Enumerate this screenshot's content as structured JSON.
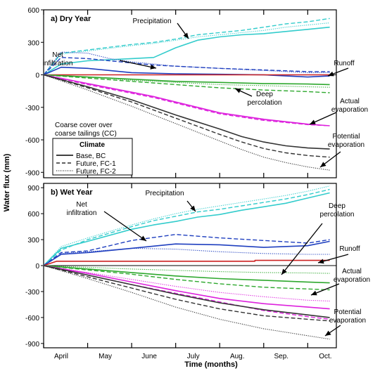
{
  "y_axis_label": "Water flux (mm)",
  "x_axis_label": "Time (months)",
  "months": [
    "April",
    "May",
    "June",
    "July",
    "Aug.",
    "Sep.",
    "Oct."
  ],
  "legend": {
    "cover_note": [
      "Coarse cover over",
      "coarse tailings (CC)"
    ],
    "title": "Climate",
    "entries": [
      "Base, BC",
      "Future, FC-1",
      "Future, FC-2"
    ]
  },
  "colors": {
    "precipitation": "#33cccc",
    "net_infiltration": "#1f3fbf",
    "runoff": "#cc2222",
    "deep_percolation": "#2ea82e",
    "actual_evaporation": "#dd22dd",
    "potential_evaporation": "#333333"
  },
  "chart_data": [
    {
      "type": "line",
      "title": "a) Dry Year",
      "xlim": [
        0,
        6.65
      ],
      "ylim": [
        -950,
        600
      ],
      "yticks": [
        -900,
        -600,
        -300,
        0,
        300,
        600
      ],
      "annotations": [
        "Precipitation",
        "Net infiltration",
        "Runoff",
        "Deep percolation",
        "Actual evaporation",
        "Potential evaporation"
      ],
      "series": [
        {
          "var": "precipitation",
          "scenario": "BC",
          "x": [
            0,
            0.4,
            1,
            2,
            2.5,
            3,
            3.5,
            4,
            4.5,
            5,
            5.5,
            6,
            6.5
          ],
          "y": [
            0,
            100,
            130,
            150,
            160,
            250,
            320,
            350,
            370,
            380,
            400,
            420,
            440
          ]
        },
        {
          "var": "precipitation",
          "scenario": "FC-1",
          "x": [
            0,
            0.4,
            1,
            2,
            2.5,
            3,
            3.5,
            4,
            4.5,
            5,
            5.5,
            6,
            6.5
          ],
          "y": [
            0,
            200,
            230,
            280,
            300,
            330,
            370,
            390,
            410,
            440,
            470,
            490,
            520
          ]
        },
        {
          "var": "precipitation",
          "scenario": "FC-2",
          "x": [
            0,
            0.4,
            1,
            2,
            2.5,
            3,
            3.5,
            4,
            4.5,
            5,
            5.5,
            6,
            6.5
          ],
          "y": [
            0,
            190,
            220,
            270,
            290,
            320,
            350,
            370,
            390,
            410,
            440,
            460,
            480
          ]
        },
        {
          "var": "net_infiltration",
          "scenario": "BC",
          "x": [
            0,
            0.4,
            1,
            2,
            3,
            4,
            5,
            5.5,
            6,
            6.5
          ],
          "y": [
            0,
            70,
            60,
            20,
            10,
            5,
            0,
            -10,
            -20,
            -10
          ]
        },
        {
          "var": "net_infiltration",
          "scenario": "FC-1",
          "x": [
            0,
            0.4,
            1,
            1.5,
            2,
            2.5,
            3,
            4,
            5,
            6,
            6.5
          ],
          "y": [
            0,
            160,
            150,
            130,
            110,
            90,
            80,
            60,
            45,
            30,
            30
          ]
        },
        {
          "var": "net_infiltration",
          "scenario": "FC-2",
          "x": [
            0,
            0.4,
            1,
            1.5,
            2,
            2.5,
            3,
            4,
            5,
            6,
            6.5
          ],
          "y": [
            0,
            210,
            200,
            150,
            120,
            100,
            80,
            60,
            40,
            20,
            20
          ]
        },
        {
          "var": "runoff",
          "scenario": "BC",
          "x": [
            0,
            6.5
          ],
          "y": [
            0,
            0
          ]
        },
        {
          "var": "deep_percolation",
          "scenario": "BC",
          "x": [
            0,
            1,
            2,
            3,
            4,
            5,
            6,
            6.5
          ],
          "y": [
            0,
            -20,
            -40,
            -60,
            -70,
            -80,
            -85,
            -90
          ]
        },
        {
          "var": "deep_percolation",
          "scenario": "FC-1",
          "x": [
            0,
            1,
            2,
            3,
            4,
            5,
            6,
            6.5
          ],
          "y": [
            0,
            -30,
            -60,
            -90,
            -120,
            -140,
            -155,
            -165
          ]
        },
        {
          "var": "deep_percolation",
          "scenario": "FC-2",
          "x": [
            0,
            1,
            2,
            3,
            4,
            5,
            6,
            6.5
          ],
          "y": [
            0,
            -20,
            -50,
            -70,
            -90,
            -100,
            -110,
            -115
          ]
        },
        {
          "var": "actual_evaporation",
          "scenario": "BC",
          "x": [
            0,
            1,
            2,
            2.5,
            3,
            3.5,
            4,
            5,
            6,
            6.5
          ],
          "y": [
            0,
            -80,
            -160,
            -200,
            -250,
            -300,
            -350,
            -410,
            -455,
            -470
          ]
        },
        {
          "var": "actual_evaporation",
          "scenario": "FC-1",
          "x": [
            0,
            1,
            2,
            2.5,
            3,
            3.5,
            4,
            5,
            6,
            6.5
          ],
          "y": [
            0,
            -90,
            -170,
            -210,
            -260,
            -310,
            -360,
            -420,
            -460,
            -470
          ]
        },
        {
          "var": "actual_evaporation",
          "scenario": "FC-2",
          "x": [
            0,
            1,
            2,
            2.5,
            3,
            3.5,
            4,
            5,
            6,
            6.5
          ],
          "y": [
            0,
            -85,
            -165,
            -205,
            -255,
            -305,
            -355,
            -415,
            -458,
            -470
          ]
        },
        {
          "var": "potential_evaporation",
          "scenario": "BC",
          "x": [
            0,
            1,
            2,
            3,
            4,
            4.5,
            5,
            5.5,
            6,
            6.5
          ],
          "y": [
            0,
            -110,
            -230,
            -370,
            -500,
            -570,
            -620,
            -655,
            -675,
            -685
          ]
        },
        {
          "var": "potential_evaporation",
          "scenario": "FC-1",
          "x": [
            0,
            1,
            2,
            3,
            4,
            4.5,
            5,
            5.5,
            6,
            6.5
          ],
          "y": [
            0,
            -120,
            -250,
            -400,
            -550,
            -620,
            -680,
            -720,
            -745,
            -760
          ]
        },
        {
          "var": "potential_evaporation",
          "scenario": "FC-2",
          "x": [
            0,
            1,
            2,
            3,
            4,
            4.5,
            5,
            5.5,
            6,
            6.5
          ],
          "y": [
            0,
            -140,
            -290,
            -450,
            -610,
            -690,
            -760,
            -810,
            -850,
            -880
          ]
        }
      ]
    },
    {
      "type": "line",
      "title": "b) Wet Year",
      "xlim": [
        0,
        6.65
      ],
      "ylim": [
        -950,
        950
      ],
      "yticks": [
        -900,
        -600,
        -300,
        0,
        300,
        600,
        900
      ],
      "annotations": [
        "Precipitation",
        "Net infiltration",
        "Deep percolation",
        "Runoff",
        "Actual evaporation",
        "Potential evaporation"
      ],
      "series": [
        {
          "var": "precipitation",
          "scenario": "BC",
          "x": [
            0,
            0.4,
            1,
            2,
            2.5,
            3,
            3.5,
            4,
            4.5,
            5,
            5.5,
            6,
            6.5
          ],
          "y": [
            0,
            200,
            280,
            420,
            470,
            510,
            560,
            590,
            640,
            680,
            720,
            780,
            840
          ]
        },
        {
          "var": "precipitation",
          "scenario": "FC-1",
          "x": [
            0,
            0.4,
            1,
            2,
            2.5,
            3,
            3.5,
            4,
            4.5,
            5,
            5.5,
            6,
            6.5
          ],
          "y": [
            0,
            180,
            300,
            450,
            520,
            570,
            620,
            650,
            690,
            730,
            770,
            820,
            880
          ]
        },
        {
          "var": "precipitation",
          "scenario": "FC-2",
          "x": [
            0,
            0.4,
            1,
            2,
            2.5,
            3,
            3.5,
            4,
            4.5,
            5,
            5.5,
            6,
            6.5
          ],
          "y": [
            0,
            220,
            320,
            470,
            540,
            600,
            650,
            690,
            730,
            770,
            810,
            860,
            920
          ]
        },
        {
          "var": "net_infiltration",
          "scenario": "BC",
          "x": [
            0,
            0.4,
            1,
            2,
            3,
            4,
            5,
            6,
            6.5
          ],
          "y": [
            0,
            130,
            150,
            200,
            250,
            240,
            210,
            230,
            280
          ]
        },
        {
          "var": "net_infiltration",
          "scenario": "FC-1",
          "x": [
            0,
            0.4,
            1,
            2,
            3,
            4,
            5,
            6,
            6.5
          ],
          "y": [
            0,
            150,
            170,
            290,
            360,
            320,
            290,
            260,
            300
          ]
        },
        {
          "var": "net_infiltration",
          "scenario": "FC-2",
          "x": [
            0,
            0.4,
            1,
            2,
            3,
            4,
            5,
            6,
            6.5
          ],
          "y": [
            0,
            140,
            160,
            200,
            190,
            160,
            140,
            130,
            130
          ]
        },
        {
          "var": "runoff",
          "scenario": "BC",
          "x": [
            0,
            0.3,
            4.8,
            4.8,
            6.5
          ],
          "y": [
            0,
            50,
            50,
            60,
            60
          ]
        },
        {
          "var": "deep_percolation",
          "scenario": "BC",
          "x": [
            0,
            1,
            2,
            3,
            4,
            5,
            6,
            6.5
          ],
          "y": [
            0,
            -40,
            -80,
            -120,
            -150,
            -170,
            -190,
            -200
          ]
        },
        {
          "var": "deep_percolation",
          "scenario": "FC-1",
          "x": [
            0,
            1,
            2,
            3,
            4,
            5,
            6,
            6.5
          ],
          "y": [
            0,
            -50,
            -100,
            -160,
            -210,
            -250,
            -270,
            -280
          ]
        },
        {
          "var": "deep_percolation",
          "scenario": "FC-2",
          "x": [
            0,
            1,
            2,
            3,
            4,
            5,
            6,
            6.5
          ],
          "y": [
            0,
            -20,
            -40,
            -55,
            -70,
            -80,
            -85,
            -90
          ]
        },
        {
          "var": "actual_evaporation",
          "scenario": "BC",
          "x": [
            0,
            1,
            2,
            3,
            4,
            5,
            6,
            6.5
          ],
          "y": [
            0,
            -90,
            -190,
            -290,
            -380,
            -440,
            -480,
            -500
          ]
        },
        {
          "var": "actual_evaporation",
          "scenario": "FC-1",
          "x": [
            0,
            1,
            2,
            3,
            4,
            5,
            6,
            6.5
          ],
          "y": [
            0,
            -110,
            -220,
            -320,
            -420,
            -520,
            -590,
            -620
          ]
        },
        {
          "var": "actual_evaporation",
          "scenario": "FC-2",
          "x": [
            0,
            1,
            2,
            3,
            4,
            5,
            6,
            6.5
          ],
          "y": [
            0,
            -80,
            -160,
            -240,
            -310,
            -360,
            -400,
            -410
          ]
        },
        {
          "var": "potential_evaporation",
          "scenario": "BC",
          "x": [
            0,
            1,
            2,
            3,
            4,
            5,
            6,
            6.5
          ],
          "y": [
            0,
            -110,
            -220,
            -330,
            -430,
            -510,
            -570,
            -600
          ]
        },
        {
          "var": "potential_evaporation",
          "scenario": "FC-1",
          "x": [
            0,
            1,
            2,
            3,
            4,
            5,
            6,
            6.5
          ],
          "y": [
            0,
            -130,
            -260,
            -390,
            -500,
            -580,
            -620,
            -640
          ]
        },
        {
          "var": "potential_evaporation",
          "scenario": "FC-2",
          "x": [
            0,
            1,
            2,
            3,
            4,
            5,
            6,
            6.5
          ],
          "y": [
            0,
            -150,
            -310,
            -480,
            -620,
            -730,
            -810,
            -850
          ]
        }
      ]
    }
  ]
}
